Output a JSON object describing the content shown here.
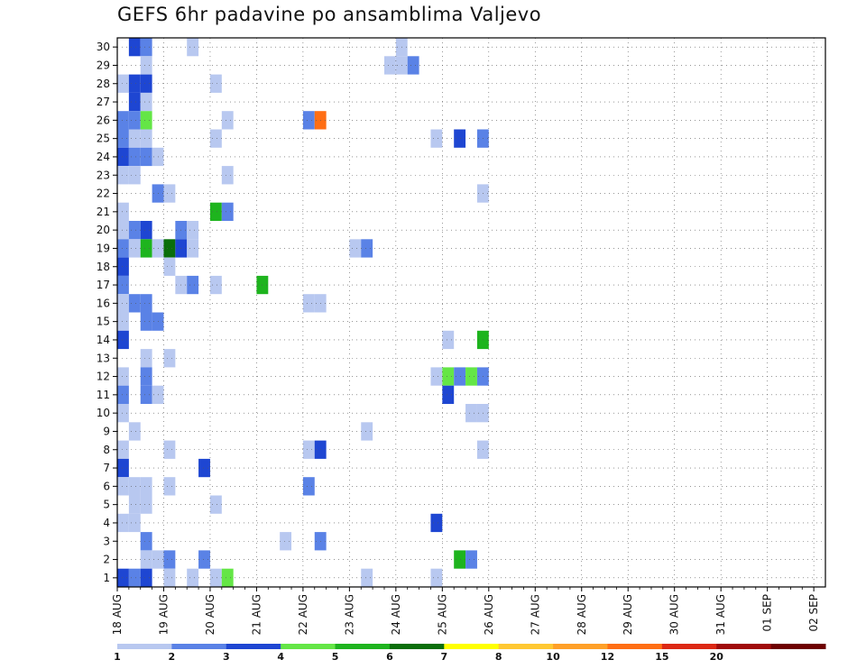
{
  "chart_data": {
    "type": "heatmap",
    "title": "GEFS 6hr padavine po ansamblima Valjevo",
    "xlabel": "",
    "ylabel": "",
    "x_tick_labels": [
      "18 AUG",
      "19 AUG",
      "20 AUG",
      "21 AUG",
      "22 AUG",
      "23 AUG",
      "24 AUG",
      "25 AUG",
      "26 AUG",
      "27 AUG",
      "28 AUG",
      "29 AUG",
      "30 AUG",
      "31 AUG",
      "01 SEP",
      "02 SEP"
    ],
    "y_tick_labels": [
      "1",
      "2",
      "3",
      "4",
      "5",
      "6",
      "7",
      "8",
      "9",
      "10",
      "11",
      "12",
      "13",
      "14",
      "15",
      "16",
      "17",
      "18",
      "19",
      "20",
      "21",
      "22",
      "23",
      "24",
      "25",
      "26",
      "27",
      "28",
      "29",
      "30"
    ],
    "ensemble_members": 30,
    "time_steps_6hr": 61,
    "grid": true,
    "colorbar": {
      "levels": [
        "1",
        "2",
        "3",
        "4",
        "5",
        "6",
        "7",
        "8",
        "10",
        "12",
        "15",
        "20"
      ],
      "colors": [
        "#b8c8f0",
        "#5a82e6",
        "#1e46d2",
        "#64e646",
        "#1eb41e",
        "#0a6e0a",
        "#ffff00",
        "#ffc832",
        "#ffa028",
        "#ff6e14",
        "#dc2814",
        "#a00a0a",
        "#6e0000"
      ]
    },
    "cells": [
      [
        30,
        1,
        3
      ],
      [
        30,
        2,
        2
      ],
      [
        30,
        6,
        1
      ],
      [
        30,
        24,
        1
      ],
      [
        29,
        2,
        1
      ],
      [
        29,
        23,
        1
      ],
      [
        29,
        24,
        1
      ],
      [
        29,
        25,
        2
      ],
      [
        28,
        0,
        1
      ],
      [
        28,
        1,
        3
      ],
      [
        28,
        2,
        3
      ],
      [
        28,
        8,
        1
      ],
      [
        27,
        1,
        3
      ],
      [
        27,
        2,
        1
      ],
      [
        26,
        0,
        2
      ],
      [
        26,
        1,
        2
      ],
      [
        26,
        2,
        4
      ],
      [
        26,
        9,
        1
      ],
      [
        26,
        16,
        2
      ],
      [
        26,
        17,
        10
      ],
      [
        25,
        0,
        2
      ],
      [
        25,
        1,
        1
      ],
      [
        25,
        2,
        1
      ],
      [
        25,
        8,
        1
      ],
      [
        25,
        27,
        1
      ],
      [
        25,
        29,
        3
      ],
      [
        25,
        31,
        2
      ],
      [
        24,
        0,
        3
      ],
      [
        24,
        1,
        2
      ],
      [
        24,
        2,
        2
      ],
      [
        24,
        3,
        1
      ],
      [
        23,
        0,
        1
      ],
      [
        23,
        1,
        1
      ],
      [
        23,
        9,
        1
      ],
      [
        22,
        3,
        2
      ],
      [
        22,
        4,
        1
      ],
      [
        22,
        31,
        1
      ],
      [
        21,
        0,
        1
      ],
      [
        21,
        8,
        5
      ],
      [
        21,
        9,
        2
      ],
      [
        20,
        0,
        1
      ],
      [
        20,
        1,
        2
      ],
      [
        20,
        2,
        3
      ],
      [
        20,
        5,
        2
      ],
      [
        20,
        6,
        1
      ],
      [
        19,
        0,
        2
      ],
      [
        19,
        1,
        1
      ],
      [
        19,
        2,
        5
      ],
      [
        19,
        3,
        1
      ],
      [
        19,
        4,
        6
      ],
      [
        19,
        5,
        3
      ],
      [
        19,
        6,
        1
      ],
      [
        19,
        20,
        1
      ],
      [
        19,
        21,
        2
      ],
      [
        18,
        0,
        3
      ],
      [
        18,
        4,
        1
      ],
      [
        17,
        0,
        2
      ],
      [
        17,
        5,
        1
      ],
      [
        17,
        6,
        2
      ],
      [
        17,
        8,
        1
      ],
      [
        17,
        12,
        5
      ],
      [
        16,
        0,
        1
      ],
      [
        16,
        1,
        2
      ],
      [
        16,
        2,
        2
      ],
      [
        16,
        16,
        1
      ],
      [
        16,
        17,
        1
      ],
      [
        15,
        0,
        1
      ],
      [
        15,
        2,
        2
      ],
      [
        15,
        3,
        2
      ],
      [
        14,
        0,
        3
      ],
      [
        14,
        28,
        1
      ],
      [
        14,
        31,
        5
      ],
      [
        13,
        2,
        1
      ],
      [
        13,
        4,
        1
      ],
      [
        12,
        0,
        1
      ],
      [
        12,
        2,
        2
      ],
      [
        12,
        27,
        1
      ],
      [
        12,
        28,
        4
      ],
      [
        12,
        29,
        2
      ],
      [
        12,
        30,
        4
      ],
      [
        12,
        31,
        2
      ],
      [
        11,
        0,
        2
      ],
      [
        11,
        2,
        2
      ],
      [
        11,
        3,
        1
      ],
      [
        11,
        28,
        3
      ],
      [
        10,
        0,
        1
      ],
      [
        10,
        30,
        1
      ],
      [
        10,
        31,
        1
      ],
      [
        9,
        1,
        1
      ],
      [
        9,
        21,
        1
      ],
      [
        8,
        0,
        1
      ],
      [
        8,
        4,
        1
      ],
      [
        8,
        16,
        1
      ],
      [
        8,
        17,
        3
      ],
      [
        8,
        31,
        1
      ],
      [
        7,
        0,
        3
      ],
      [
        7,
        7,
        3
      ],
      [
        6,
        0,
        1
      ],
      [
        6,
        1,
        1
      ],
      [
        6,
        2,
        1
      ],
      [
        6,
        4,
        1
      ],
      [
        6,
        16,
        2
      ],
      [
        5,
        1,
        1
      ],
      [
        5,
        2,
        1
      ],
      [
        5,
        8,
        1
      ],
      [
        4,
        0,
        1
      ],
      [
        4,
        1,
        1
      ],
      [
        4,
        27,
        3
      ],
      [
        3,
        2,
        2
      ],
      [
        3,
        14,
        1
      ],
      [
        3,
        17,
        2
      ],
      [
        2,
        2,
        1
      ],
      [
        2,
        3,
        1
      ],
      [
        2,
        4,
        2
      ],
      [
        2,
        7,
        2
      ],
      [
        2,
        29,
        5
      ],
      [
        2,
        30,
        2
      ],
      [
        1,
        0,
        3
      ],
      [
        1,
        1,
        2
      ],
      [
        1,
        2,
        3
      ],
      [
        1,
        4,
        1
      ],
      [
        1,
        6,
        1
      ],
      [
        1,
        8,
        1
      ],
      [
        1,
        9,
        4
      ],
      [
        1,
        21,
        1
      ],
      [
        1,
        27,
        1
      ]
    ]
  }
}
